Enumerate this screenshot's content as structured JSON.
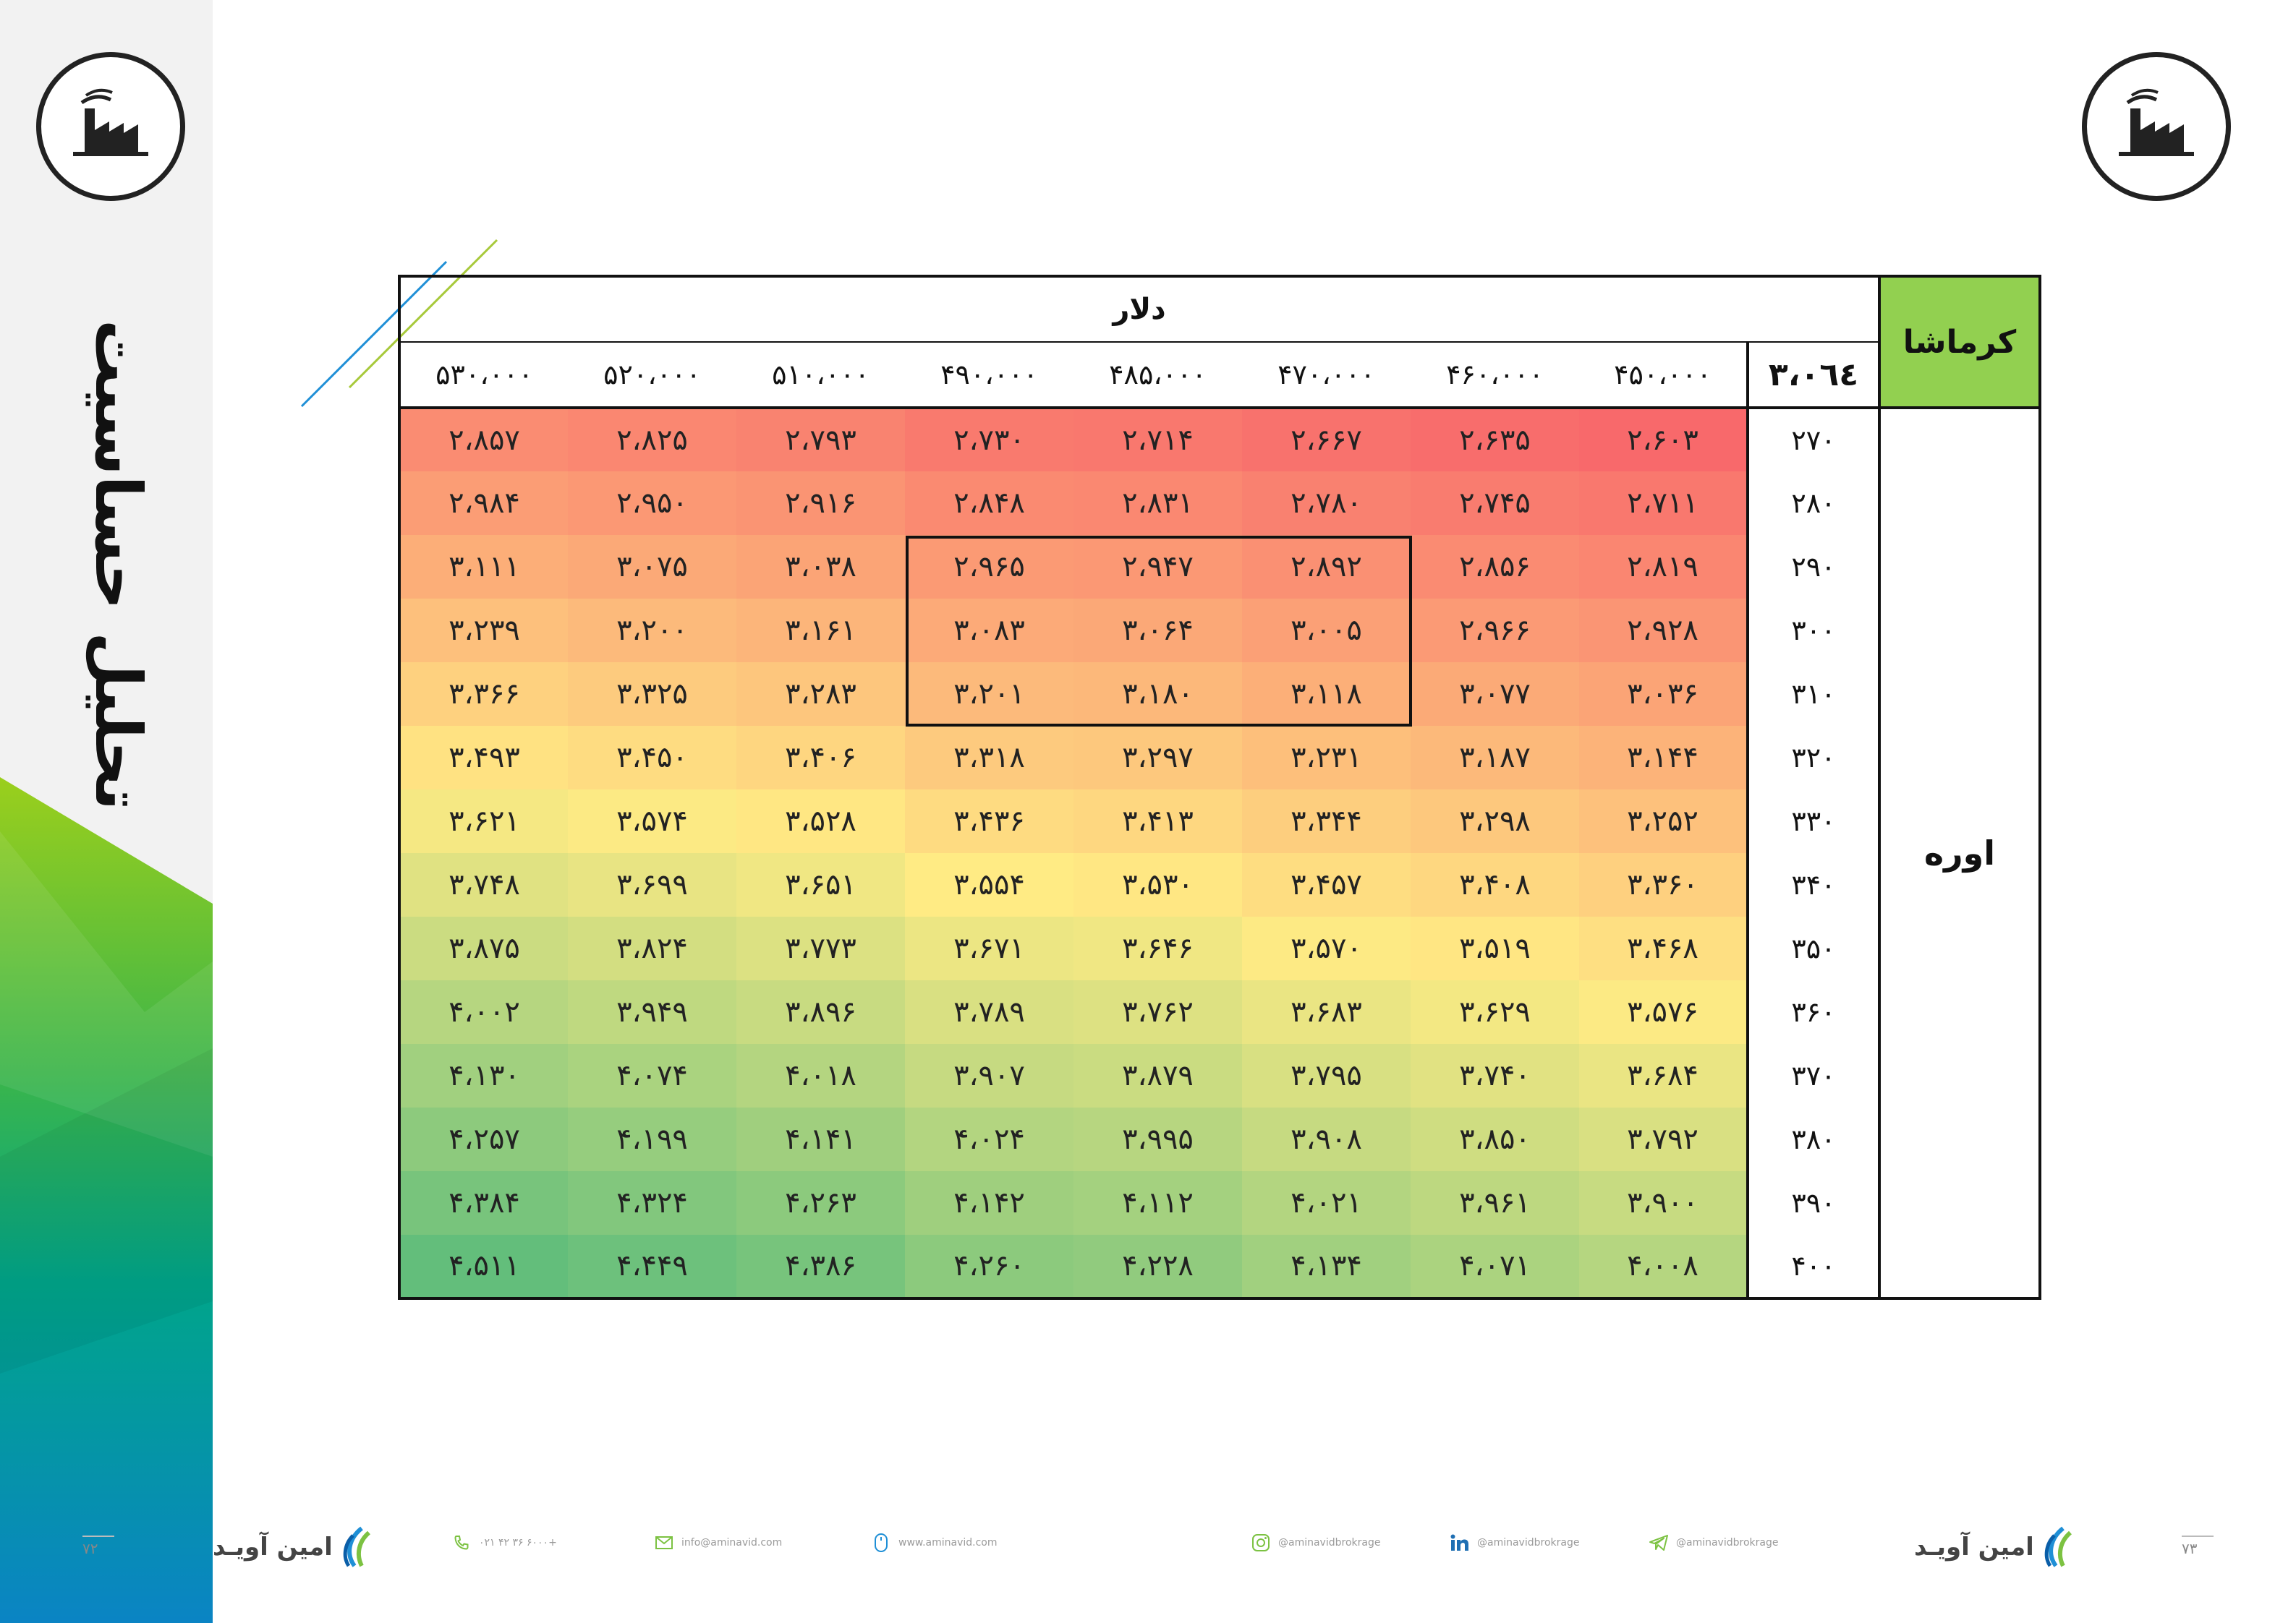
{
  "sidebar": {
    "title": "تحلیل حساسیت"
  },
  "table": {
    "corner_label": "کرماشا",
    "column_group_label": "دلار",
    "row_group_label": "اوره",
    "base_value": "۳،۰٦٤",
    "columns": [
      "۴۵۰،۰۰۰",
      "۴۶۰،۰۰۰",
      "۴۷۰،۰۰۰",
      "۴۸۵،۰۰۰",
      "۴۹۰،۰۰۰",
      "۵۱۰،۰۰۰",
      "۵۲۰،۰۰۰",
      "۵۳۰،۰۰۰"
    ],
    "rows": [
      {
        "label": "۲۷۰",
        "cells": [
          "۲،۶۰۳",
          "۲،۶۳۵",
          "۲،۶۶۷",
          "۲،۷۱۴",
          "۲،۷۳۰",
          "۲،۷۹۳",
          "۲،۸۲۵",
          "۲،۸۵۷"
        ]
      },
      {
        "label": "۲۸۰",
        "cells": [
          "۲،۷۱۱",
          "۲،۷۴۵",
          "۲،۷۸۰",
          "۲،۸۳۱",
          "۲،۸۴۸",
          "۲،۹۱۶",
          "۲،۹۵۰",
          "۲،۹۸۴"
        ]
      },
      {
        "label": "۲۹۰",
        "cells": [
          "۲،۸۱۹",
          "۲،۸۵۶",
          "۲،۸۹۲",
          "۲،۹۴۷",
          "۲،۹۶۵",
          "۳،۰۳۸",
          "۳،۰۷۵",
          "۳،۱۱۱"
        ]
      },
      {
        "label": "۳۰۰",
        "cells": [
          "۲،۹۲۸",
          "۲،۹۶۶",
          "۳،۰۰۵",
          "۳،۰۶۴",
          "۳،۰۸۳",
          "۳،۱۶۱",
          "۳،۲۰۰",
          "۳،۲۳۹"
        ]
      },
      {
        "label": "۳۱۰",
        "cells": [
          "۳،۰۳۶",
          "۳،۰۷۷",
          "۳،۱۱۸",
          "۳،۱۸۰",
          "۳،۲۰۱",
          "۳،۲۸۳",
          "۳،۳۲۵",
          "۳،۳۶۶"
        ]
      },
      {
        "label": "۳۲۰",
        "cells": [
          "۳،۱۴۴",
          "۳،۱۸۷",
          "۳،۲۳۱",
          "۳،۲۹۷",
          "۳،۳۱۸",
          "۳،۴۰۶",
          "۳،۴۵۰",
          "۳،۴۹۳"
        ]
      },
      {
        "label": "۳۳۰",
        "cells": [
          "۳،۲۵۲",
          "۳،۲۹۸",
          "۳،۳۴۴",
          "۳،۴۱۳",
          "۳،۴۳۶",
          "۳،۵۲۸",
          "۳،۵۷۴",
          "۳،۶۲۱"
        ]
      },
      {
        "label": "۳۴۰",
        "cells": [
          "۳،۳۶۰",
          "۳،۴۰۸",
          "۳،۴۵۷",
          "۳،۵۳۰",
          "۳،۵۵۴",
          "۳،۶۵۱",
          "۳،۶۹۹",
          "۳،۷۴۸"
        ]
      },
      {
        "label": "۳۵۰",
        "cells": [
          "۳،۴۶۸",
          "۳،۵۱۹",
          "۳،۵۷۰",
          "۳،۶۴۶",
          "۳،۶۷۱",
          "۳،۷۷۳",
          "۳،۸۲۴",
          "۳،۸۷۵"
        ]
      },
      {
        "label": "۳۶۰",
        "cells": [
          "۳،۵۷۶",
          "۳،۶۲۹",
          "۳،۶۸۳",
          "۳،۷۶۲",
          "۳،۷۸۹",
          "۳،۸۹۶",
          "۳،۹۴۹",
          "۴،۰۰۲"
        ]
      },
      {
        "label": "۳۷۰",
        "cells": [
          "۳،۶۸۴",
          "۳،۷۴۰",
          "۳،۷۹۵",
          "۳،۸۷۹",
          "۳،۹۰۷",
          "۴،۰۱۸",
          "۴،۰۷۴",
          "۴،۱۳۰"
        ]
      },
      {
        "label": "۳۸۰",
        "cells": [
          "۳،۷۹۲",
          "۳،۸۵۰",
          "۳،۹۰۸",
          "۳،۹۹۵",
          "۴،۰۲۴",
          "۴،۱۴۱",
          "۴،۱۹۹",
          "۴،۲۵۷"
        ]
      },
      {
        "label": "۳۹۰",
        "cells": [
          "۳،۹۰۰",
          "۳،۹۶۱",
          "۴،۰۲۱",
          "۴،۱۱۲",
          "۴،۱۴۲",
          "۴،۲۶۳",
          "۴،۳۲۴",
          "۴،۳۸۴"
        ]
      },
      {
        "label": "۴۰۰",
        "cells": [
          "۴،۰۰۸",
          "۴،۰۷۱",
          "۴،۱۳۴",
          "۴،۲۲۸",
          "۴،۲۶۰",
          "۴،۳۸۶",
          "۴،۴۴۹",
          "۴،۵۱۱"
        ]
      }
    ],
    "heat_colors": {
      "low": "#f8696b",
      "mid": "#ffeb84",
      "high": "#63be7b"
    }
  },
  "footer": {
    "left_page_number": "۷۲",
    "right_page_number": "۷۳",
    "brand_name": "امین آویـد",
    "phone": "۰۲۱ ۴۲ ۳۶ ۶۰۰۰+",
    "email": "info@aminavid.com",
    "website": "www.aminavid.com",
    "instagram": "@aminavidbrokrage",
    "linkedin": "@aminavidbrokrage",
    "telegram": "@aminavidbrokrage",
    "accent_color": "#7cc242"
  }
}
